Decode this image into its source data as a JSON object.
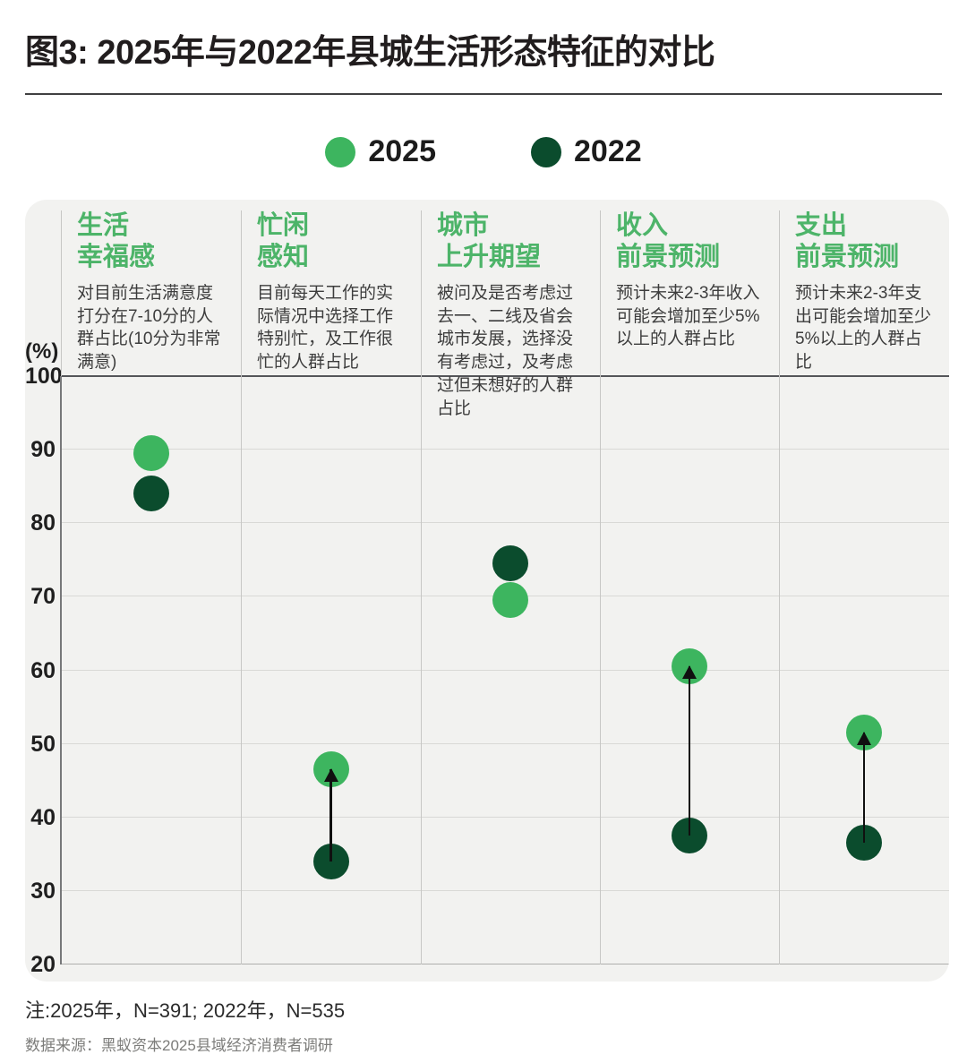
{
  "figure": {
    "title": "图3: 2025年与2022年县城生活形态特征的对比",
    "note": "注:2025年，N=391; 2022年，N=535",
    "source": "数据来源：黑蚁资本2025县域经济消费者调研"
  },
  "legend": [
    {
      "label": "2025",
      "color": "#3db55f"
    },
    {
      "label": "2022",
      "color": "#0b4c2d"
    }
  ],
  "colors": {
    "green_2025": "#3db55f",
    "green_2022": "#0b4c2d",
    "header_green": "#4db469",
    "arrow_black": "#101010",
    "panel_bg": "#f2f2f0"
  },
  "chart_data": {
    "type": "scatter",
    "subtype": "dumbbell-dot-comparison",
    "unit_label": "(%)",
    "ylim": [
      20,
      100
    ],
    "yticks": [
      100,
      90,
      80,
      70,
      60,
      50,
      40,
      30,
      20
    ],
    "grid": true,
    "legend_position": "top-center",
    "series_names": [
      "2025",
      "2022"
    ],
    "categories": [
      {
        "title": "生活\n幸福感",
        "description": "对目前生活满意度打分在7-10分的人群占比(10分为非常满意)",
        "value_2025": 89.5,
        "value_2022": 84,
        "arrow": false
      },
      {
        "title": "忙闲\n感知",
        "description": "目前每天工作的实际情况中选择工作特别忙，及工作很忙的人群占比",
        "value_2025": 46.5,
        "value_2022": 34,
        "arrow": true
      },
      {
        "title": "城市\n上升期望",
        "description": "被问及是否考虑过去一、二线及省会城市发展，选择没有考虑过，及考虑过但未想好的人群占比",
        "value_2025": 69.5,
        "value_2022": 74.5,
        "arrow": false
      },
      {
        "title": "收入\n前景预测",
        "description": "预计未来2-3年收入可能会增加至少5%以上的人群占比",
        "value_2025": 60.5,
        "value_2022": 37.5,
        "arrow": true
      },
      {
        "title": "支出\n前景预测",
        "description": "预计未来2-3年支出可能会增加至少5%以上的人群占比",
        "value_2025": 51.5,
        "value_2022": 36.5,
        "arrow": true
      }
    ]
  }
}
